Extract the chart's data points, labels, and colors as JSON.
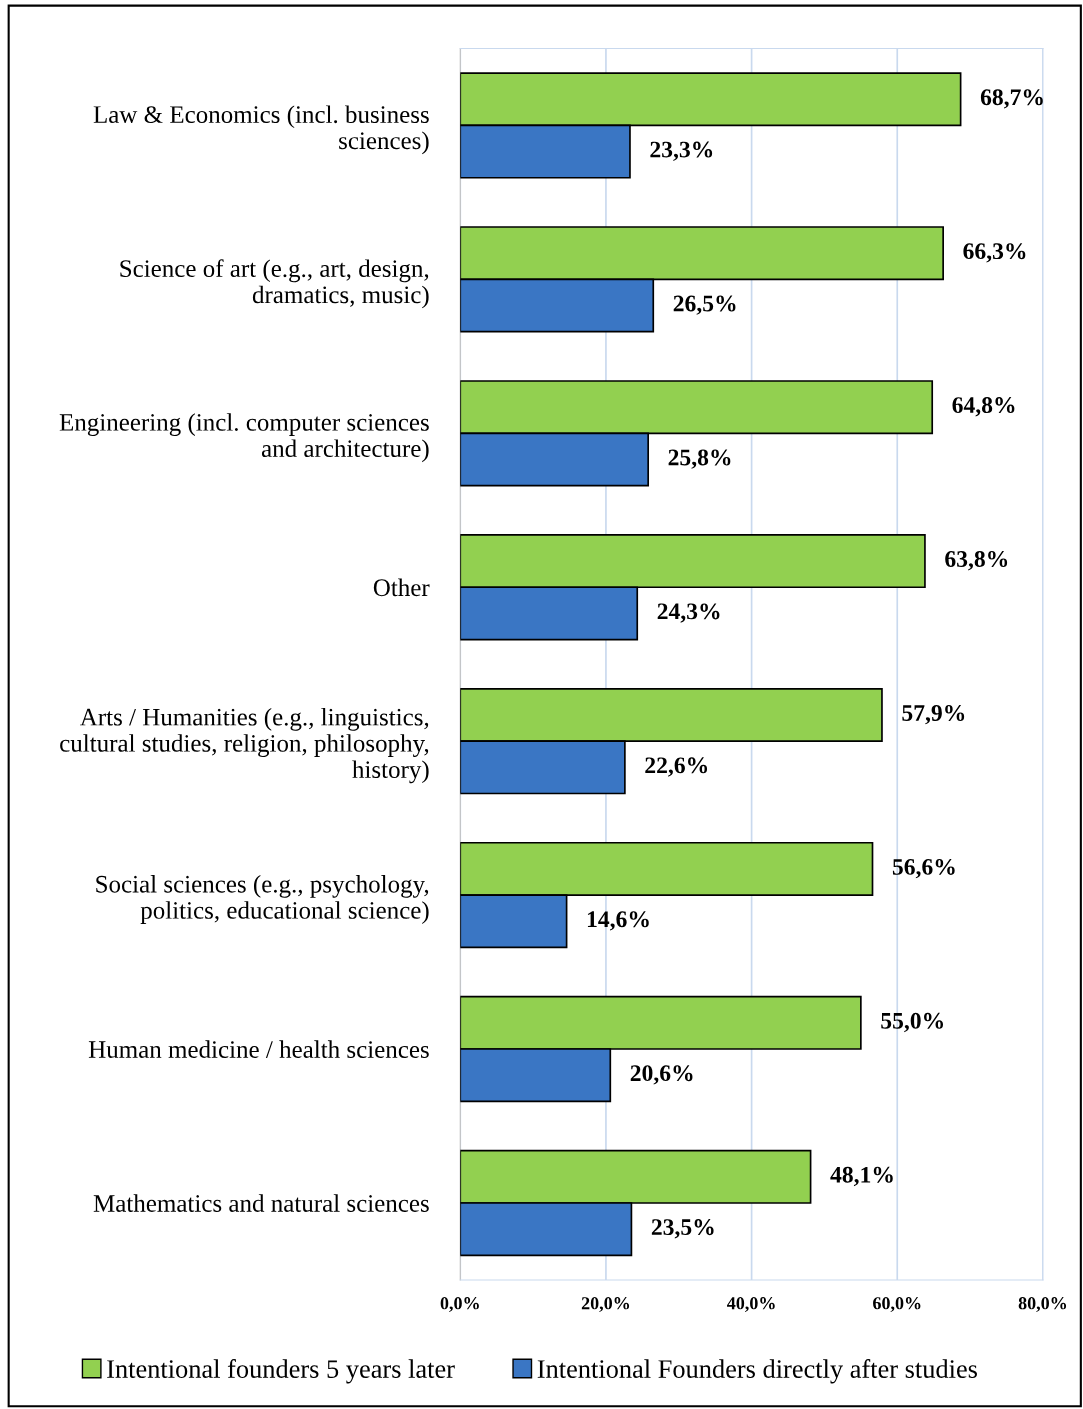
{
  "chart_data": {
    "type": "bar",
    "orientation": "horizontal",
    "categories": [
      "Law & Economics (incl. business\nsciences)",
      "Science of art (e.g., art, design,\ndramatics, music)",
      "Engineering (incl. computer sciences\nand architecture)",
      "Other",
      "Arts / Humanities (e.g., linguistics,\ncultural studies, religion, philosophy,\nhistory)",
      "Social sciences (e.g., psychology,\npolitics, educational science)",
      "Human medicine / health sciences",
      "Mathematics and natural sciences"
    ],
    "series": [
      {
        "name": "Intentional founders 5 years later",
        "color": "#92d050",
        "values": [
          68.7,
          66.3,
          64.8,
          63.8,
          57.9,
          56.6,
          55.0,
          48.1
        ],
        "value_labels": [
          "68,7%",
          "66,3%",
          "64,8%",
          "63,8%",
          "57,9%",
          "56,6%",
          "55,0%",
          "48,1%"
        ]
      },
      {
        "name": "Intentional Founders directly after studies",
        "color": "#3a76c4",
        "values": [
          23.3,
          26.5,
          25.8,
          24.3,
          22.6,
          14.6,
          20.6,
          23.5
        ],
        "value_labels": [
          "23,3%",
          "26,5%",
          "25,8%",
          "24,3%",
          "22,6%",
          "14,6%",
          "20,6%",
          "23,5%"
        ]
      }
    ],
    "xlim": [
      0,
      80
    ],
    "xticks": [
      {
        "value": 0,
        "label": "0,0%"
      },
      {
        "value": 20,
        "label": "20,0%"
      },
      {
        "value": 40,
        "label": "40,0%"
      },
      {
        "value": 60,
        "label": "60,0%"
      },
      {
        "value": 80,
        "label": "80,0%"
      }
    ],
    "grid": "x",
    "legend": "bottom"
  }
}
